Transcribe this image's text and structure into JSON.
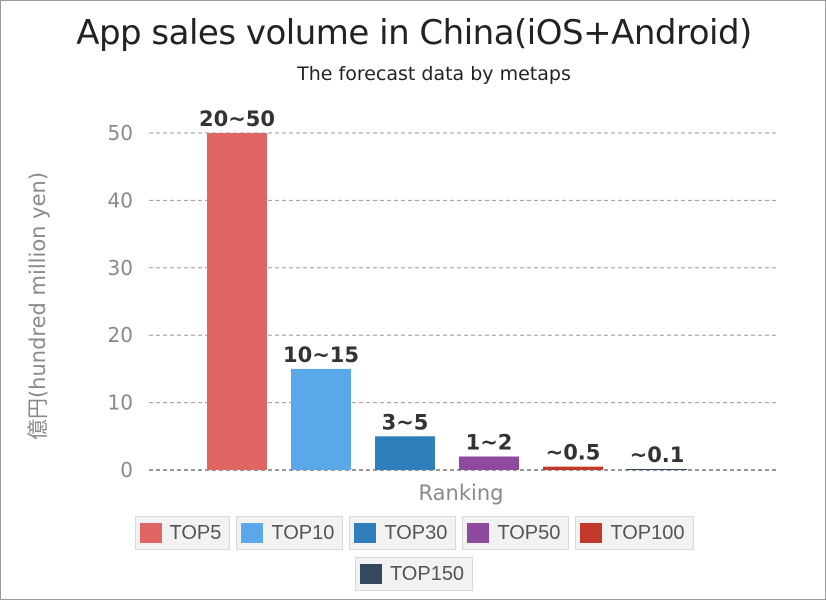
{
  "chart_data": {
    "type": "bar",
    "title": "App sales volume in China(iOS+Android)",
    "subtitle": "The forecast data by metaps",
    "xlabel": "Ranking",
    "ylabel": "億円(hundred million yen)",
    "ylim": [
      0,
      50
    ],
    "yticks": [
      0,
      10,
      20,
      30,
      40,
      50
    ],
    "grid": true,
    "legend_position": "bottom",
    "categories": [
      "TOP5",
      "TOP10",
      "TOP30",
      "TOP50",
      "TOP100",
      "TOP150"
    ],
    "values": [
      50,
      15,
      5,
      2,
      0.5,
      0.1
    ],
    "data_labels": [
      "20~50",
      "10~15",
      "3~5",
      "1~2",
      "~0.5",
      "~0.1"
    ],
    "colors": [
      "#e06666",
      "#5ba8e8",
      "#2e7fba",
      "#8e4a9e",
      "#c0392b",
      "#34495e"
    ]
  }
}
